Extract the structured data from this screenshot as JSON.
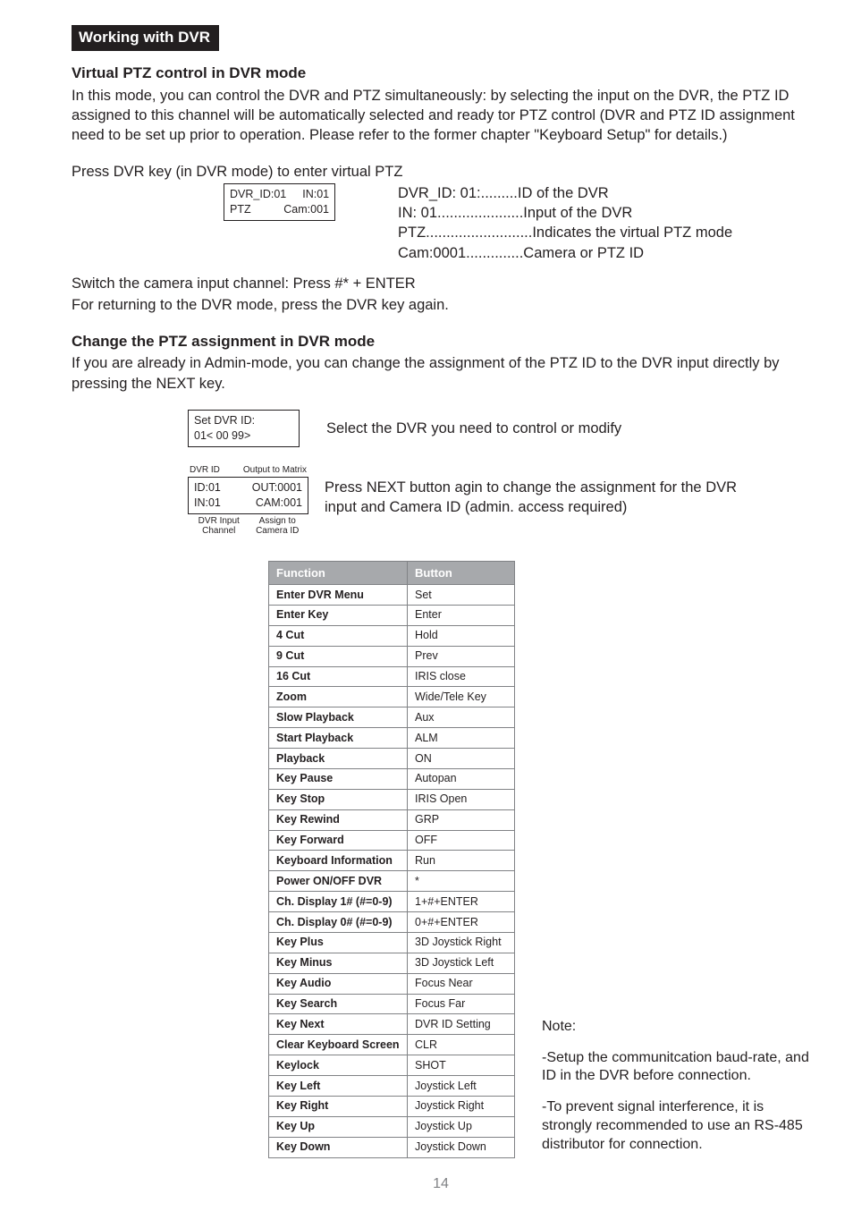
{
  "section_tag": "Working with DVR",
  "h_virtual": "Virtual PTZ control in DVR mode",
  "p_virtual": "In this mode, you can control the DVR and PTZ simultaneously: by selecting the input on the DVR, the PTZ ID assigned to this channel will be automatically selected and ready tor PTZ control (DVR and PTZ ID assignment need to be set up prior to operation. Please refer to the former chapter \"Keyboard Setup\" for details.)",
  "p_press_dvr": "Press  DVR  key (in DVR mode) to enter virtual PTZ",
  "lcd1": {
    "r1a": "DVR_ID:01",
    "r1b": "IN:01",
    "r2a": "PTZ",
    "r2b": "Cam:001"
  },
  "legend1": {
    "l1": "DVR_ID: 01:.........ID of the DVR",
    "l2": "IN: 01.....................Input of the DVR",
    "l3": "PTZ..........................Indicates the virtual PTZ mode",
    "l4": "Cam:0001..............Camera or PTZ ID"
  },
  "p_switch": "Switch the camera input channel: Press #*  +  ENTER",
  "p_return": "For returning to the DVR mode, press the  DVR  key again.",
  "h_change": "Change the PTZ assignment in DVR mode",
  "p_change": "If you are already in Admin-mode, you can change the assignment of the PTZ ID to the DVR input directly by pressing the  NEXT  key.",
  "lcd2": {
    "r1": "Set DVR ID:",
    "r2": "01< 00   99>"
  },
  "legend2": "Select the DVR you need to control or modify",
  "lcd3_top": {
    "a": "DVR ID",
    "b": "Output to Matrix"
  },
  "lcd3": {
    "r1a": "ID:01",
    "r1b": "OUT:0001",
    "r2a": "IN:01",
    "r2b": "CAM:001"
  },
  "lcd3_bot": {
    "a": "DVR Input Channel",
    "b": "Assign to Camera ID"
  },
  "legend3": "Press NEXT  button agin to change the assignment for the DVR input and Camera ID (admin. access required)",
  "table": {
    "head_f": "Function",
    "head_b": "Button",
    "rows": [
      [
        "Enter DVR Menu",
        "Set"
      ],
      [
        "Enter Key",
        "Enter"
      ],
      [
        "4 Cut",
        "Hold"
      ],
      [
        "9 Cut",
        "Prev"
      ],
      [
        "16 Cut",
        "IRIS close"
      ],
      [
        "Zoom",
        "Wide/Tele Key"
      ],
      [
        "Slow Playback",
        "Aux"
      ],
      [
        "Start Playback",
        "ALM"
      ],
      [
        "Playback",
        "ON"
      ],
      [
        "Key Pause",
        "Autopan"
      ],
      [
        "Key Stop",
        "IRIS Open"
      ],
      [
        "Key Rewind",
        "GRP"
      ],
      [
        "Key Forward",
        "OFF"
      ],
      [
        "Keyboard Information",
        "Run"
      ],
      [
        "Power ON/OFF DVR",
        "*"
      ],
      [
        "Ch. Display 1# (#=0-9)",
        "1+#+ENTER"
      ],
      [
        "Ch. Display 0# (#=0-9)",
        "0+#+ENTER"
      ],
      [
        "Key Plus",
        "3D Joystick Right"
      ],
      [
        "Key Minus",
        "3D Joystick Left"
      ],
      [
        "Key Audio",
        "Focus Near"
      ],
      [
        "Key Search",
        "Focus Far"
      ],
      [
        "Key Next",
        "DVR ID Setting"
      ],
      [
        "Clear Keyboard Screen",
        "CLR"
      ],
      [
        "Keylock",
        "SHOT"
      ],
      [
        "Key Left",
        "Joystick Left"
      ],
      [
        "Key Right",
        "Joystick Right"
      ],
      [
        "Key Up",
        "Joystick Up"
      ],
      [
        "Key Down",
        "Joystick Down"
      ]
    ]
  },
  "note": {
    "title": "Note:",
    "p1": "-Setup the communitcation baud-rate, and ID in the DVR before connection.",
    "p2": "-To prevent signal interference, it is strongly recommended to use an RS-485 distributor for connection."
  },
  "page_num": "14"
}
